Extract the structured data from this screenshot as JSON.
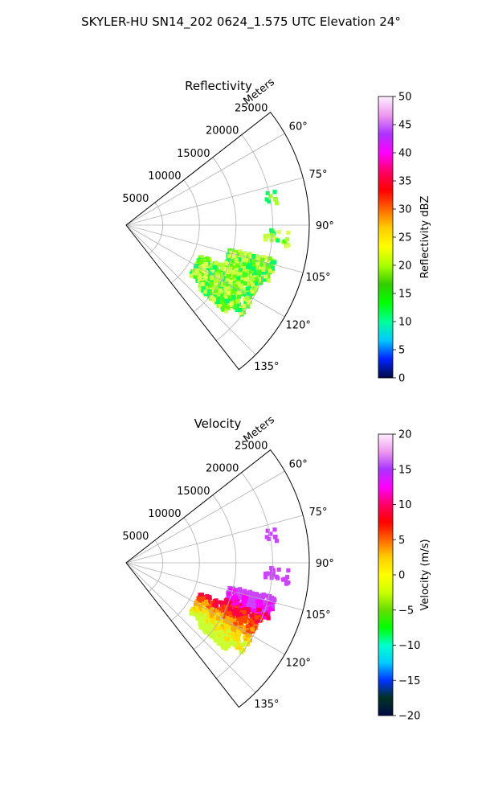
{
  "figure": {
    "suptitle": "SKYLER-HU  SN14_202  0624_1.575 UTC Elevation 24°"
  },
  "chart_data": [
    {
      "type": "heatmap",
      "title": "Reflectivity",
      "range_label": "Meters",
      "range_ticks": [
        5000,
        10000,
        15000,
        20000,
        25000
      ],
      "rmax": 25000,
      "theta_ticks_deg": [
        60,
        75,
        90,
        105,
        120,
        135
      ],
      "theta_tick_labels": [
        "60°",
        "75°",
        "90°",
        "105°",
        "120°",
        "135°"
      ],
      "theta_range_deg": [
        52,
        142
      ],
      "grid": true,
      "colorbar": {
        "label": "Reflectivity dBZ",
        "min": 0,
        "max": 50,
        "ticks": [
          0,
          5,
          10,
          15,
          20,
          25,
          30,
          35,
          40,
          45,
          50
        ],
        "stops": [
          "#000a44",
          "#0022ff",
          "#00c8ff",
          "#00ff99",
          "#00ff00",
          "#33cc00",
          "#aaff00",
          "#ffff00",
          "#ffcc00",
          "#ff6600",
          "#ff0000",
          "#ff0066",
          "#ff00ff",
          "#aa33ff",
          "#ee99ee",
          "#ffeeff"
        ]
      },
      "echo_colors": [
        "#00ff66",
        "#66ff00",
        "#aaff33",
        "#ccff44",
        "#44ff22",
        "#ddff55"
      ]
    },
    {
      "type": "heatmap",
      "title": "Velocity",
      "range_label": "Meters",
      "range_ticks": [
        5000,
        10000,
        15000,
        20000,
        25000
      ],
      "rmax": 25000,
      "theta_ticks_deg": [
        60,
        75,
        90,
        105,
        120,
        135
      ],
      "theta_tick_labels": [
        "60°",
        "75°",
        "90°",
        "105°",
        "120°",
        "135°"
      ],
      "theta_range_deg": [
        52,
        142
      ],
      "grid": true,
      "colorbar": {
        "label": "Velocity (m/s)",
        "min": -20,
        "max": 20,
        "ticks": [
          -20,
          -15,
          -10,
          -5,
          0,
          5,
          10,
          15,
          20
        ],
        "stops": [
          "#000a44",
          "#003322",
          "#0033ff",
          "#00ccff",
          "#00ffcc",
          "#00ff00",
          "#66dd00",
          "#ccff00",
          "#ffff00",
          "#ffcc00",
          "#ff6600",
          "#ff0000",
          "#ff0066",
          "#ff00ff",
          "#aa33ff",
          "#ee99ee",
          "#ffeeff"
        ]
      },
      "echo_colors": [
        "#cc44ff",
        "#ff00ff",
        "#ff0044",
        "#ff4400",
        "#ffaa00",
        "#ffdd00",
        "#ccff33"
      ]
    }
  ]
}
